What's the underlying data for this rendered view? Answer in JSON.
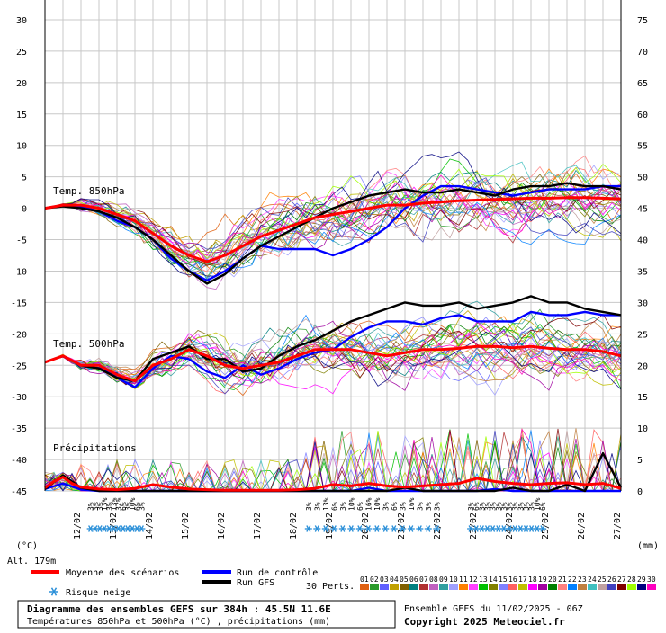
{
  "chart_data": {
    "type": "line",
    "title": "Diagramme des ensembles GEFS sur 384h : 45.5N 11.6E",
    "subtitle": "Températures 850hPa et 500hPa (°C) , précipitations (mm)",
    "ensemble_info": "Ensemble GEFS du 11/02/2025 - 06Z",
    "copyright": "Copyright 2025 Meteociel.fr",
    "altitude": "Alt. 179m",
    "left_unit": "(°C)",
    "right_unit": "(mm)",
    "left_axis": {
      "ticks": [
        30,
        25,
        20,
        15,
        10,
        5,
        0,
        -5,
        -10,
        -15,
        -20,
        -25,
        -30,
        -35,
        -40,
        -45
      ],
      "range": [
        -45,
        30
      ]
    },
    "right_axis": {
      "ticks": [
        75,
        70,
        65,
        60,
        55,
        50,
        45,
        40,
        35,
        30,
        25,
        20,
        15,
        10,
        5,
        0
      ],
      "range": [
        0,
        75
      ]
    },
    "x_axis": {
      "ticks": [
        "12/02",
        "13/02",
        "14/02",
        "15/02",
        "16/02",
        "17/02",
        "18/02",
        "19/02",
        "20/02",
        "21/02",
        "22/02",
        "23/02",
        "24/02",
        "25/02",
        "26/02",
        "27/02"
      ],
      "range_days": [
        0,
        16
      ]
    },
    "panel_labels": {
      "t850": "Temp. 850hPa",
      "t500": "Temp. 500hPa",
      "precip": "Précipitations"
    },
    "legend": {
      "mean": "Moyenne des scénarios",
      "control": "Run de contrôle",
      "gfs": "Run GFS",
      "snow": "Risque neige",
      "perts": "30 Perts."
    },
    "colors": {
      "mean": "#ff0000",
      "control": "#0000ff",
      "gfs": "#000000",
      "snow": "#2a8fd8"
    },
    "pert_labels": [
      "01",
      "02",
      "03",
      "04",
      "05",
      "06",
      "07",
      "08",
      "09",
      "10",
      "11",
      "12",
      "13",
      "14",
      "15",
      "16",
      "17",
      "18",
      "19",
      "20",
      "21",
      "22",
      "23",
      "24",
      "25",
      "26",
      "27",
      "28",
      "29",
      "30"
    ],
    "pert_colors": [
      "#e06010",
      "#2a9a2a",
      "#6060ff",
      "#c0a000",
      "#806000",
      "#008080",
      "#b03030",
      "#c060c0",
      "#30a0a0",
      "#a0a0ff",
      "#ff8000",
      "#ff40ff",
      "#00c000",
      "#808000",
      "#8080ff",
      "#ff6060",
      "#c0c000",
      "#ff00ff",
      "#a000a0",
      "#008000",
      "#ff8080",
      "#0080ff",
      "#c08040",
      "#40c0c0",
      "#c0a0a0",
      "#4040c0",
      "#800000",
      "#a0ff00",
      "#000080",
      "#ff00c0"
    ],
    "snow_groups": [
      {
        "x_start": 1.2,
        "x_end": 2.75,
        "values": [
          "3%",
          "3%",
          "3%",
          "13%",
          "3%",
          "13%",
          "32%",
          "6%",
          "3%",
          "10%",
          "6%",
          "3%"
        ]
      },
      {
        "x_start": 7.2,
        "x_end": 11.0,
        "values": [
          "3%",
          "3%",
          "13%",
          "6%",
          "3%",
          "10%",
          "6%",
          "16%",
          "10%",
          "3%",
          "6%",
          "3%",
          "16%",
          "3%",
          "3%",
          "3%"
        ]
      },
      {
        "x_start": 11.75,
        "x_end": 13.9,
        "values": [
          "3%",
          "6%",
          "3%",
          "3%",
          "3%",
          "3%",
          "3%",
          "3%",
          "3%",
          "3%",
          "3%",
          "3%",
          "10%",
          "6%"
        ]
      }
    ],
    "series": [
      {
        "name": "Moyenne des scénarios",
        "panel": "t850",
        "x": [
          0,
          0.5,
          1,
          1.5,
          2,
          2.5,
          3,
          3.5,
          4,
          4.5,
          5,
          5.5,
          6,
          6.5,
          7,
          7.5,
          8,
          8.5,
          9,
          9.5,
          10,
          10.5,
          11,
          11.5,
          12,
          12.5,
          13,
          13.5,
          14,
          14.5,
          15,
          15.5,
          16
        ],
        "values": [
          0,
          0.5,
          0.5,
          0,
          -1,
          -2,
          -4,
          -6,
          -7.5,
          -8.5,
          -7.5,
          -6,
          -4.5,
          -3.5,
          -2.5,
          -1.5,
          -1,
          -0.5,
          0,
          0.5,
          0.5,
          0.8,
          1,
          1.2,
          1.3,
          1.4,
          1.5,
          1.6,
          1.6,
          1.7,
          1.7,
          1.6,
          1.5
        ]
      },
      {
        "name": "Run de contrôle",
        "panel": "t850",
        "x": [
          0,
          0.5,
          1,
          1.5,
          2,
          2.5,
          3,
          3.5,
          4,
          4.5,
          5,
          5.5,
          6,
          6.5,
          7,
          7.5,
          8,
          8.5,
          9,
          9.5,
          10,
          10.5,
          11,
          11.5,
          12,
          12.5,
          13,
          13.5,
          14,
          14.5,
          15,
          15.5,
          16
        ],
        "values": [
          0,
          0.5,
          0.3,
          -0.5,
          -2,
          -3,
          -5,
          -8,
          -10,
          -11.5,
          -10,
          -8,
          -6,
          -6.5,
          -6.5,
          -6.5,
          -7.5,
          -6.5,
          -5,
          -3,
          0,
          2,
          3.5,
          3.5,
          3,
          2.5,
          2,
          2.5,
          3,
          3,
          3,
          3.5,
          3.5
        ]
      },
      {
        "name": "Run GFS",
        "panel": "t850",
        "x": [
          0,
          0.5,
          1,
          1.5,
          2,
          2.5,
          3,
          3.5,
          4,
          4.5,
          5,
          5.5,
          6,
          6.5,
          7,
          7.5,
          8,
          8.5,
          9,
          9.5,
          10,
          10.5,
          11,
          11.5,
          12,
          12.5,
          13,
          13.5,
          14,
          14.5,
          15,
          15.5,
          16
        ],
        "values": [
          0,
          0.3,
          0,
          -0.5,
          -1.5,
          -3,
          -5,
          -7.5,
          -10,
          -12,
          -10.5,
          -8,
          -6,
          -4.5,
          -3,
          -1.5,
          0,
          1,
          2,
          2.5,
          3,
          2.5,
          2.5,
          3,
          2.5,
          2,
          3,
          3.5,
          3.5,
          4,
          3.5,
          3.5,
          3
        ]
      },
      {
        "name": "Moyenne des scénarios",
        "panel": "t500",
        "x": [
          0,
          0.5,
          1,
          1.5,
          2,
          2.5,
          3,
          3.5,
          4,
          4.5,
          5,
          5.5,
          6,
          6.5,
          7,
          7.5,
          8,
          8.5,
          9,
          9.5,
          10,
          10.5,
          11,
          11.5,
          12,
          12.5,
          13,
          13.5,
          14,
          14.5,
          15,
          15.5,
          16
        ],
        "values": [
          -24.5,
          -23.5,
          -25,
          -25,
          -26.5,
          -27.5,
          -25,
          -24,
          -22.5,
          -23.5,
          -25,
          -25.5,
          -25,
          -24.5,
          -23.5,
          -22.5,
          -22.5,
          -22.5,
          -23,
          -23.5,
          -23,
          -22.5,
          -22.5,
          -22.3,
          -22,
          -22,
          -22.2,
          -22,
          -22.3,
          -22.5,
          -22.5,
          -22.8,
          -23.5
        ]
      },
      {
        "name": "Run de contrôle",
        "panel": "t500",
        "x": [
          0,
          0.5,
          1,
          1.5,
          2,
          2.5,
          3,
          3.5,
          4,
          4.5,
          5,
          5.5,
          6,
          6.5,
          7,
          7.5,
          8,
          8.5,
          9,
          9.5,
          10,
          10.5,
          11,
          11.5,
          12,
          12.5,
          13,
          13.5,
          14,
          14.5,
          15,
          15.5,
          16
        ],
        "values": [
          -24.5,
          -23.5,
          -25,
          -25,
          -27,
          -28.5,
          -25.5,
          -23.5,
          -24,
          -26,
          -27,
          -25,
          -26.5,
          -25.5,
          -24,
          -23,
          -22.5,
          -20.5,
          -19,
          -18,
          -18,
          -18.5,
          -17.5,
          -17,
          -18,
          -18,
          -18,
          -16.5,
          -17,
          -17,
          -16.5,
          -17,
          -17
        ]
      },
      {
        "name": "Run GFS",
        "panel": "t500",
        "x": [
          0,
          0.5,
          1,
          1.5,
          2,
          2.5,
          3,
          3.5,
          4,
          4.5,
          5,
          5.5,
          6,
          6.5,
          7,
          7.5,
          8,
          8.5,
          9,
          9.5,
          10,
          10.5,
          11,
          11.5,
          12,
          12.5,
          13,
          13.5,
          14,
          14.5,
          15,
          15.5,
          16
        ],
        "values": [
          -24.5,
          -23.5,
          -25,
          -25.5,
          -27,
          -27.5,
          -24,
          -23,
          -22,
          -24,
          -24,
          -26,
          -25.5,
          -23.5,
          -22,
          -21,
          -19.5,
          -18,
          -17,
          -16,
          -15,
          -15.5,
          -15.5,
          -15,
          -16,
          -15.5,
          -15,
          -14,
          -15,
          -15,
          -16,
          -16.5,
          -17
        ]
      },
      {
        "name": "Moyenne des scénarios",
        "panel": "precip",
        "x": [
          0,
          0.25,
          0.5,
          0.75,
          1,
          1.5,
          2,
          2.5,
          3,
          3.5,
          4,
          4.5,
          5,
          5.5,
          6,
          6.5,
          7,
          7.5,
          8,
          8.5,
          9,
          9.5,
          10,
          10.5,
          11,
          11.5,
          12,
          12.5,
          13,
          13.5,
          14,
          14.5,
          15,
          15.5,
          16
        ],
        "values": [
          0.5,
          1.5,
          2.2,
          1.2,
          0.6,
          0.3,
          0.2,
          0.4,
          1,
          0.6,
          0.3,
          0.2,
          0.1,
          0.1,
          0.1,
          0.1,
          0.2,
          0.4,
          1,
          0.8,
          1.2,
          0.8,
          0.6,
          0.8,
          1,
          1.2,
          2,
          1.5,
          1.2,
          1,
          1.2,
          1.3,
          1,
          1.2,
          0.4
        ]
      },
      {
        "name": "Run de contrôle",
        "panel": "precip",
        "x": [
          0,
          0.5,
          1,
          1.5,
          2,
          2.5,
          3,
          3.5,
          4,
          4.5,
          5,
          5.5,
          6,
          6.5,
          7,
          7.5,
          8,
          8.5,
          9,
          9.5,
          10,
          10.5,
          11,
          11.5,
          12,
          12.5,
          13,
          13.5,
          14,
          14.5,
          15,
          15.5,
          16
        ],
        "values": [
          0.3,
          1.2,
          0.2,
          0,
          0,
          0,
          0,
          0,
          0,
          0,
          0,
          0,
          0,
          0,
          0,
          0,
          0,
          0,
          0.5,
          0,
          0,
          0,
          0,
          0,
          0,
          0.3,
          0,
          0,
          0,
          0,
          0,
          0,
          0
        ]
      },
      {
        "name": "Run GFS",
        "panel": "precip",
        "x": [
          0,
          0.5,
          1,
          1.5,
          2,
          2.5,
          3,
          3.5,
          4,
          4.5,
          5,
          5.5,
          6,
          6.5,
          7,
          7.5,
          8,
          8.5,
          9,
          9.5,
          10,
          10.5,
          11,
          11.5,
          12,
          12.5,
          13,
          13.5,
          14,
          14.5,
          15,
          15.5,
          16
        ],
        "values": [
          0.3,
          2.5,
          0.5,
          0,
          0,
          0,
          0,
          0,
          0,
          0,
          0,
          0,
          0,
          0,
          0,
          0,
          0,
          0,
          0,
          0,
          0.5,
          0,
          0,
          0,
          0,
          0,
          0.5,
          0,
          0,
          1,
          0,
          6,
          0.5
        ]
      }
    ]
  }
}
